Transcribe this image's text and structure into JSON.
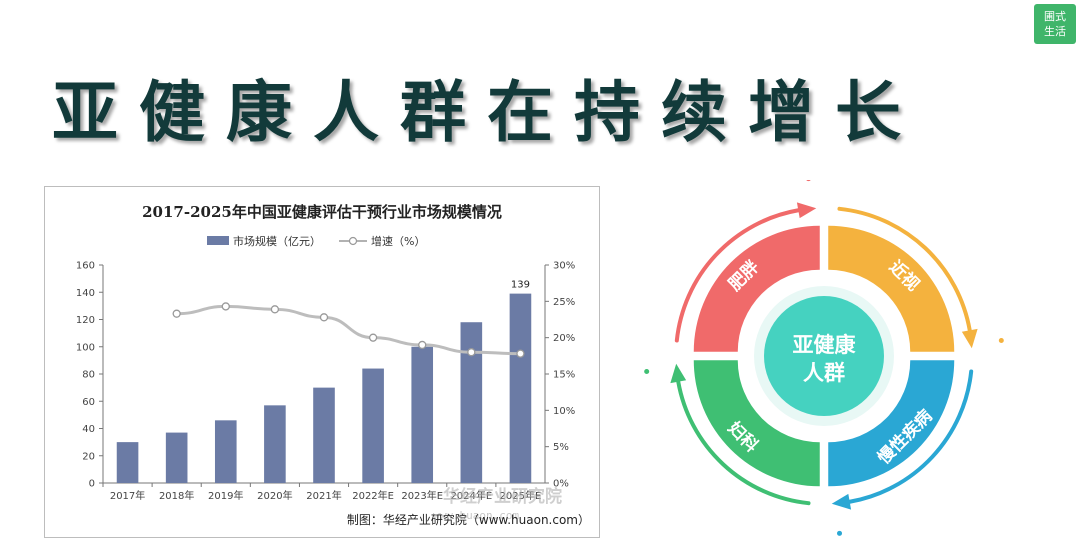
{
  "badge": {
    "line1": "圃式",
    "line2": "生活",
    "color": "#3fb56a"
  },
  "headline": "亚健康人群在持续增长",
  "chart_data": {
    "type": "bar",
    "title": "2017-2025年中国亚健康评估干预行业市场规模情况",
    "categories": [
      "2017年",
      "2018年",
      "2019年",
      "2020年",
      "2021年",
      "2022年E",
      "2023年E",
      "2024年E",
      "2025年E"
    ],
    "series": [
      {
        "name": "市场规模（亿元）",
        "kind": "bar",
        "axis": "left",
        "color": "#6b7ba5",
        "values": [
          30,
          37,
          46,
          57,
          70,
          84,
          100,
          118,
          139
        ]
      },
      {
        "name": "增速（%）",
        "kind": "line",
        "axis": "right",
        "color": "#bdbdbd",
        "values": [
          null,
          23.3,
          24.3,
          23.9,
          22.8,
          20.0,
          19.0,
          18.0,
          17.8
        ]
      }
    ],
    "y_left": {
      "min": 0,
      "max": 160,
      "ticks": [
        "0",
        "20",
        "40",
        "60",
        "80",
        "100",
        "120",
        "140",
        "160"
      ]
    },
    "y_right": {
      "min": 0,
      "max": 30,
      "ticks": [
        "0%",
        "5%",
        "10%",
        "15%",
        "20%",
        "25%",
        "30%"
      ]
    },
    "data_labels": [
      {
        "index": 8,
        "text": "139"
      }
    ],
    "legend_position": "top",
    "grid": false,
    "source": "制图：华经产业研究院（www.huaon.com）",
    "watermark": {
      "main": "华经产业研究院",
      "sub": "www.huaon.com"
    }
  },
  "ring": {
    "center": [
      "亚健康",
      "人群"
    ],
    "segments": [
      {
        "label": "肥胖",
        "color": "#f06a6a"
      },
      {
        "label": "近视",
        "color": "#f4b23e"
      },
      {
        "label": "慢性疾病",
        "color": "#2aa7d4"
      },
      {
        "label": "妇科",
        "color": "#3fbf73"
      }
    ],
    "center_color": "#45d2c0"
  }
}
